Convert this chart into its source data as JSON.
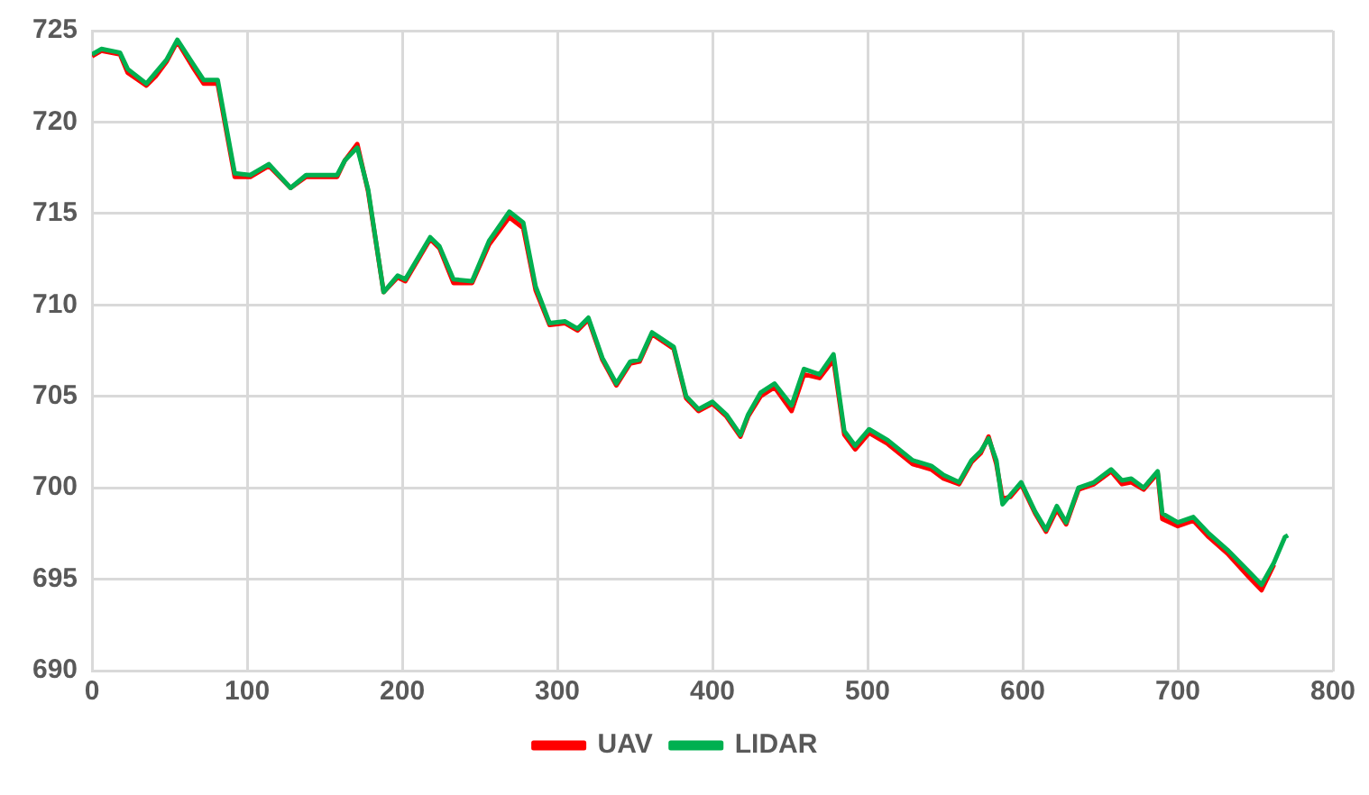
{
  "chart_data": {
    "type": "line",
    "x": [
      0,
      6,
      18,
      23,
      35,
      41,
      48,
      55,
      65,
      72,
      81,
      92,
      102,
      114,
      128,
      138,
      150,
      158,
      163,
      171,
      178,
      188,
      197,
      202,
      218,
      224,
      233,
      245,
      256,
      269,
      278,
      286,
      295,
      305,
      313,
      320,
      329,
      338,
      347,
      353,
      361,
      375,
      383,
      391,
      400,
      409,
      418,
      423,
      431,
      440,
      451,
      459,
      469,
      478,
      485,
      492,
      501,
      513,
      529,
      541,
      549,
      559,
      567,
      573,
      578,
      583,
      587,
      592,
      599,
      608,
      615,
      622,
      628,
      636,
      646,
      657,
      664,
      670,
      678,
      687,
      690,
      700,
      710,
      720,
      732,
      746,
      754,
      762,
      769,
      771
    ],
    "series": [
      {
        "name": "UAV",
        "color": "#ff0000",
        "values": [
          723.6,
          723.9,
          723.7,
          722.7,
          722.0,
          722.5,
          723.3,
          724.4,
          723.0,
          722.1,
          722.1,
          717.0,
          717.0,
          717.6,
          716.4,
          717.0,
          717.0,
          717.0,
          717.9,
          718.8,
          716.2,
          710.7,
          711.5,
          711.3,
          713.6,
          713.1,
          711.2,
          711.2,
          713.3,
          714.8,
          714.2,
          710.8,
          708.9,
          709.0,
          708.6,
          709.2,
          707.0,
          705.6,
          706.8,
          706.9,
          708.4,
          707.6,
          704.9,
          704.2,
          704.6,
          703.9,
          702.8,
          703.9,
          705.0,
          705.5,
          704.2,
          706.2,
          706.0,
          707.0,
          702.9,
          702.1,
          703.0,
          702.4,
          701.3,
          701.0,
          700.5,
          700.2,
          701.4,
          701.9,
          702.8,
          701.3,
          699.4,
          699.5,
          700.2,
          698.6,
          697.6,
          698.8,
          698.0,
          699.9,
          700.2,
          700.9,
          700.2,
          700.3,
          699.9,
          700.8,
          698.3,
          697.9,
          698.2,
          697.3,
          696.4,
          695.1,
          694.4,
          695.8,
          null,
          null
        ]
      },
      {
        "name": "LIDAR",
        "color": "#00b050",
        "values": [
          723.7,
          724.0,
          723.8,
          722.9,
          722.1,
          722.7,
          723.4,
          724.5,
          723.2,
          722.3,
          722.3,
          717.2,
          717.1,
          717.7,
          716.4,
          717.1,
          717.1,
          717.1,
          717.9,
          718.6,
          716.3,
          710.7,
          711.6,
          711.4,
          713.7,
          713.2,
          711.4,
          711.3,
          713.5,
          715.1,
          714.5,
          711.0,
          709.0,
          709.1,
          708.7,
          709.3,
          707.1,
          705.7,
          706.9,
          707.0,
          708.5,
          707.7,
          705.0,
          704.3,
          704.7,
          704.0,
          702.9,
          704.0,
          705.2,
          705.7,
          704.5,
          706.5,
          706.2,
          707.3,
          703.1,
          702.3,
          703.2,
          702.6,
          701.5,
          701.2,
          700.7,
          700.3,
          701.5,
          702.0,
          702.7,
          701.5,
          699.1,
          699.6,
          700.3,
          698.7,
          697.7,
          699.0,
          698.1,
          700.0,
          700.3,
          701.0,
          700.4,
          700.5,
          700.0,
          700.9,
          698.6,
          698.1,
          698.4,
          697.5,
          696.6,
          695.4,
          694.7,
          695.9,
          697.3,
          697.4
        ]
      }
    ],
    "xlim": [
      0,
      800
    ],
    "xticks": [
      0,
      100,
      200,
      300,
      400,
      500,
      600,
      700,
      800
    ],
    "ylim": [
      690,
      725
    ],
    "yticks": [
      690,
      695,
      700,
      705,
      710,
      715,
      720,
      725
    ],
    "grid": true,
    "legend": "bottom",
    "marker": "none",
    "line_style": "solid"
  }
}
